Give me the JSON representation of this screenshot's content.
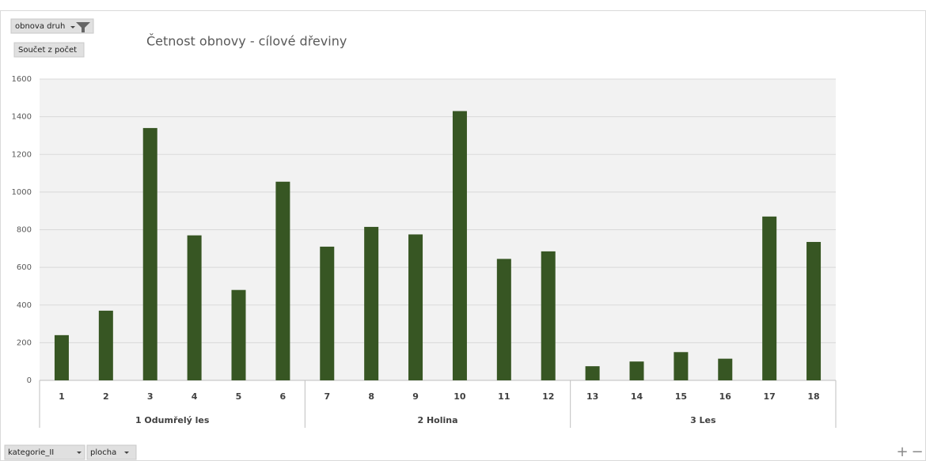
{
  "chart_data": {
    "type": "bar",
    "title": "Četnost obnovy - cílové dřeviny",
    "groups": [
      {
        "name": "1 Odumřelý les",
        "categories": [
          "1",
          "2",
          "3",
          "4",
          "5",
          "6"
        ]
      },
      {
        "name": "2 Holina",
        "categories": [
          "7",
          "8",
          "9",
          "10",
          "11",
          "12"
        ]
      },
      {
        "name": "3 Les",
        "categories": [
          "13",
          "14",
          "15",
          "16",
          "17",
          "18"
        ]
      }
    ],
    "values": [
      240,
      370,
      1340,
      770,
      480,
      1055,
      710,
      815,
      775,
      1430,
      645,
      685,
      75,
      100,
      150,
      115,
      870,
      735
    ],
    "color": "#375623",
    "ylim": [
      0,
      1600
    ],
    "yticks": [
      0,
      200,
      400,
      600,
      800,
      1000,
      1200,
      1400,
      1600
    ],
    "grid": true
  },
  "controls": {
    "filter_field": "obnova druh",
    "value_field": "Součet z počet",
    "axis_fields": [
      "kategorie_II",
      "plocha"
    ],
    "zoom": [
      "+",
      "−"
    ]
  }
}
